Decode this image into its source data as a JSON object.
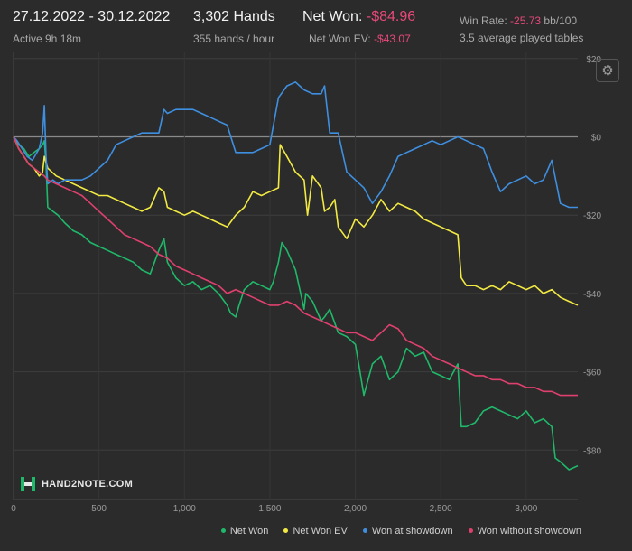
{
  "header": {
    "date_range": "27.12.2022 - 30.12.2022",
    "active": "Active 9h 18m",
    "hands": "3,302 Hands",
    "hands_per_hour": "355 hands / hour",
    "net_won_label": "Net Won:",
    "net_won_value": "-$84.96",
    "net_won_ev_label": "Net Won  EV:",
    "net_won_ev_value": "-$43.07",
    "win_rate_label": "Win Rate:",
    "win_rate_value": "-25.73",
    "win_rate_unit": "bb/100",
    "avg_tables": "3.5 average played tables"
  },
  "logo_text": "HAND2NOTE.COM",
  "settings_icon": "gear-icon",
  "colors": {
    "background": "#2b2b2b",
    "negative": "#e8487a",
    "net_won": "#1fb86a",
    "net_won_ev": "#f2ea42",
    "won_showdown": "#3f8fe0",
    "won_without_showdown": "#e0406e"
  },
  "chart_data": {
    "type": "line",
    "xlabel": "",
    "ylabel": "",
    "xlim": [
      0,
      3302
    ],
    "ylim": [
      -90,
      20
    ],
    "x_ticks": [
      0,
      500,
      1000,
      1500,
      2000,
      2500,
      3000
    ],
    "x_tick_labels": [
      "0",
      "500",
      "1,000",
      "1,500",
      "2,000",
      "2,500",
      "3,000"
    ],
    "y_ticks": [
      20,
      0,
      -20,
      -40,
      -60,
      -80
    ],
    "y_tick_labels": [
      "$20",
      "$0",
      "-$20",
      "-$40",
      "-$60",
      "-$80"
    ],
    "legend_position": "bottom-right",
    "series": [
      {
        "name": "Net Won",
        "color": "#1fb86a",
        "x": [
          0,
          30,
          60,
          90,
          120,
          150,
          170,
          180,
          190,
          200,
          230,
          260,
          300,
          350,
          400,
          450,
          500,
          550,
          600,
          650,
          700,
          750,
          800,
          850,
          880,
          900,
          950,
          1000,
          1050,
          1100,
          1150,
          1200,
          1250,
          1270,
          1300,
          1320,
          1350,
          1400,
          1450,
          1500,
          1520,
          1550,
          1570,
          1600,
          1650,
          1700,
          1710,
          1750,
          1800,
          1820,
          1850,
          1900,
          1950,
          2000,
          2020,
          2050,
          2100,
          2150,
          2200,
          2250,
          2300,
          2350,
          2400,
          2450,
          2500,
          2550,
          2600,
          2620,
          2650,
          2700,
          2750,
          2800,
          2850,
          2900,
          2950,
          3000,
          3050,
          3100,
          3150,
          3170,
          3200,
          3250,
          3302
        ],
        "y": [
          0,
          -2,
          -3,
          -5,
          -4,
          -3,
          -2,
          -1,
          -7,
          -18,
          -19,
          -20,
          -22,
          -24,
          -25,
          -27,
          -28,
          -29,
          -30,
          -31,
          -32,
          -34,
          -35,
          -29,
          -26,
          -32,
          -36,
          -38,
          -37,
          -39,
          -38,
          -40,
          -43,
          -45,
          -46,
          -43,
          -39,
          -37,
          -38,
          -39,
          -37,
          -32,
          -27,
          -29,
          -34,
          -44,
          -40,
          -42,
          -47,
          -46,
          -44,
          -50,
          -51,
          -53,
          -58,
          -66,
          -58,
          -56,
          -62,
          -60,
          -54,
          -56,
          -55,
          -60,
          -61,
          -62,
          -58,
          -74,
          -74,
          -73,
          -70,
          -69,
          -70,
          -71,
          -72,
          -70,
          -73,
          -72,
          -74,
          -82,
          -83,
          -85,
          -84
        ]
      },
      {
        "name": "Net Won  EV",
        "color": "#f2ea42",
        "x": [
          0,
          30,
          60,
          90,
          120,
          150,
          170,
          180,
          200,
          250,
          300,
          350,
          400,
          450,
          500,
          550,
          600,
          650,
          700,
          750,
          800,
          850,
          880,
          900,
          950,
          1000,
          1050,
          1100,
          1150,
          1200,
          1250,
          1300,
          1350,
          1400,
          1450,
          1500,
          1550,
          1560,
          1600,
          1650,
          1700,
          1720,
          1750,
          1800,
          1820,
          1850,
          1880,
          1900,
          1950,
          2000,
          2050,
          2100,
          2150,
          2200,
          2250,
          2300,
          2350,
          2400,
          2450,
          2500,
          2550,
          2600,
          2620,
          2650,
          2700,
          2750,
          2800,
          2850,
          2900,
          2950,
          3000,
          3050,
          3100,
          3150,
          3200,
          3250,
          3302
        ],
        "y": [
          0,
          -3,
          -5,
          -7,
          -8,
          -10,
          -9,
          -5,
          -8,
          -10,
          -11,
          -12,
          -13,
          -14,
          -15,
          -15,
          -16,
          -17,
          -18,
          -19,
          -18,
          -13,
          -14,
          -18,
          -19,
          -20,
          -19,
          -20,
          -21,
          -22,
          -23,
          -20,
          -18,
          -14,
          -15,
          -14,
          -13,
          -2,
          -5,
          -9,
          -11,
          -20,
          -10,
          -13,
          -19,
          -18,
          -16,
          -23,
          -26,
          -21,
          -23,
          -20,
          -16,
          -19,
          -17,
          -18,
          -19,
          -21,
          -22,
          -23,
          -24,
          -25,
          -36,
          -38,
          -38,
          -39,
          -38,
          -39,
          -37,
          -38,
          -39,
          -38,
          -40,
          -39,
          -41,
          -42,
          -43
        ]
      },
      {
        "name": "Won at showdown",
        "color": "#3f8fe0",
        "x": [
          0,
          20,
          50,
          80,
          110,
          150,
          170,
          180,
          190,
          200,
          230,
          260,
          300,
          350,
          400,
          450,
          500,
          550,
          600,
          650,
          700,
          750,
          800,
          850,
          880,
          900,
          950,
          1000,
          1050,
          1100,
          1150,
          1200,
          1250,
          1300,
          1350,
          1400,
          1450,
          1500,
          1550,
          1600,
          1650,
          1700,
          1750,
          1800,
          1820,
          1850,
          1900,
          1950,
          2000,
          2050,
          2100,
          2150,
          2200,
          2250,
          2300,
          2350,
          2400,
          2450,
          2500,
          2550,
          2600,
          2650,
          2700,
          2750,
          2800,
          2850,
          2900,
          2950,
          3000,
          3050,
          3100,
          3150,
          3200,
          3250,
          3302
        ],
        "y": [
          0,
          -1,
          -3,
          -5,
          -6,
          -3,
          1,
          8,
          -5,
          -12,
          -11,
          -12,
          -11,
          -11,
          -11,
          -10,
          -8,
          -6,
          -2,
          -1,
          0,
          1,
          1,
          1,
          7,
          6,
          7,
          7,
          7,
          6,
          5,
          4,
          3,
          -4,
          -4,
          -4,
          -3,
          -2,
          10,
          13,
          14,
          12,
          11,
          11,
          13,
          1,
          1,
          -9,
          -11,
          -13,
          -17,
          -14,
          -10,
          -5,
          -4,
          -3,
          -2,
          -1,
          -2,
          -1,
          0,
          -1,
          -2,
          -3,
          -9,
          -14,
          -12,
          -11,
          -10,
          -12,
          -11,
          -6,
          -17,
          -18,
          -18
        ]
      },
      {
        "name": "Won without showdown",
        "color": "#e0406e",
        "x": [
          0,
          30,
          60,
          90,
          120,
          150,
          180,
          200,
          250,
          300,
          350,
          400,
          450,
          500,
          550,
          600,
          650,
          700,
          750,
          800,
          850,
          900,
          950,
          1000,
          1050,
          1100,
          1150,
          1200,
          1250,
          1300,
          1350,
          1400,
          1450,
          1500,
          1550,
          1600,
          1650,
          1700,
          1750,
          1800,
          1850,
          1900,
          1950,
          2000,
          2050,
          2100,
          2150,
          2200,
          2250,
          2300,
          2350,
          2400,
          2450,
          2500,
          2550,
          2600,
          2650,
          2700,
          2750,
          2800,
          2850,
          2900,
          2950,
          3000,
          3050,
          3100,
          3150,
          3200,
          3250,
          3302
        ],
        "y": [
          0,
          -3,
          -5,
          -7,
          -8,
          -9,
          -10,
          -11,
          -12,
          -13,
          -14,
          -15,
          -17,
          -19,
          -21,
          -23,
          -25,
          -26,
          -27,
          -28,
          -30,
          -31,
          -33,
          -34,
          -35,
          -36,
          -37,
          -38,
          -40,
          -39,
          -40,
          -41,
          -42,
          -43,
          -43,
          -42,
          -43,
          -45,
          -46,
          -47,
          -48,
          -49,
          -50,
          -50,
          -51,
          -52,
          -50,
          -48,
          -49,
          -52,
          -53,
          -54,
          -56,
          -57,
          -58,
          -59,
          -60,
          -61,
          -61,
          -62,
          -62,
          -63,
          -63,
          -64,
          -64,
          -65,
          -65,
          -66,
          -66,
          -66
        ]
      }
    ]
  }
}
